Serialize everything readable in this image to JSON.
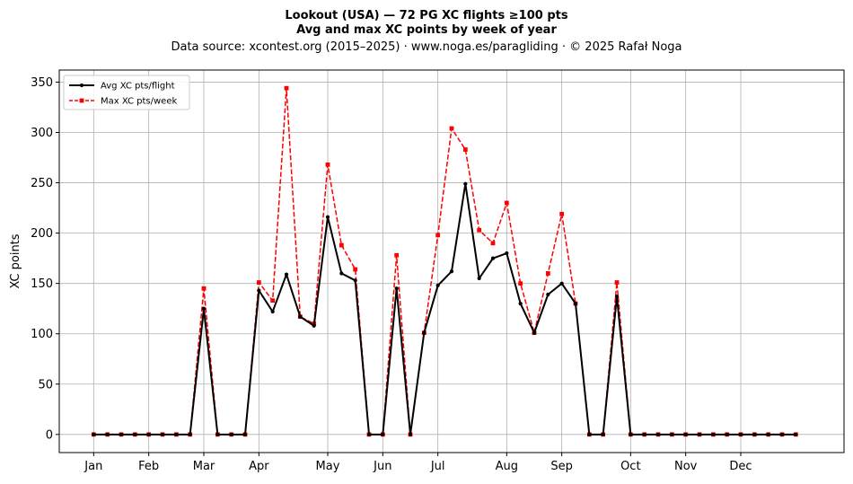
{
  "chart_data": {
    "type": "line",
    "title_lines": [
      "Lookout (USA)  —  72 PG XC flights ≥100 pts",
      "Avg and max XC points by week of year"
    ],
    "subtitle": "Data source: xcontest.org (2015–2025)  ·  www.noga.es/paragliding  ·  © 2025 Rafał Noga",
    "ylabel": "XC points",
    "xlabel": "",
    "x_unit": "week of year",
    "xlim": [
      -2.5,
      54.5
    ],
    "ylim": [
      -18,
      362
    ],
    "grid": true,
    "legend_position": "top-left",
    "x_ticks": [
      {
        "label": "Jan",
        "x": 0
      },
      {
        "label": "Feb",
        "x": 4
      },
      {
        "label": "Mar",
        "x": 8
      },
      {
        "label": "Apr",
        "x": 12
      },
      {
        "label": "May",
        "x": 17
      },
      {
        "label": "Jun",
        "x": 21
      },
      {
        "label": "Jul",
        "x": 25
      },
      {
        "label": "Aug",
        "x": 30
      },
      {
        "label": "Sep",
        "x": 34
      },
      {
        "label": "Oct",
        "x": 39
      },
      {
        "label": "Nov",
        "x": 43
      },
      {
        "label": "Dec",
        "x": 47
      }
    ],
    "y_ticks": [
      0,
      50,
      100,
      150,
      200,
      250,
      300,
      350
    ],
    "x": [
      0,
      1,
      2,
      3,
      4,
      5,
      6,
      7,
      8,
      9,
      10,
      11,
      12,
      13,
      14,
      15,
      16,
      17,
      18,
      19,
      20,
      21,
      22,
      23,
      24,
      25,
      26,
      27,
      28,
      29,
      30,
      31,
      32,
      33,
      34,
      35,
      36,
      37,
      38,
      39,
      40,
      41,
      42,
      43,
      44,
      45,
      46,
      47,
      48,
      49,
      50,
      51
    ],
    "series": [
      {
        "name": "Avg XC pts/flight",
        "color": "#000000",
        "style": "solid",
        "marker": "circle",
        "values": [
          0,
          0,
          0,
          0,
          0,
          0,
          0,
          0,
          125,
          0,
          0,
          0,
          143,
          122,
          159,
          117,
          108,
          216,
          160,
          153,
          0,
          0,
          145,
          0,
          101,
          148,
          162,
          249,
          155,
          175,
          180,
          130,
          101,
          139,
          150,
          130,
          0,
          0,
          137,
          0,
          0,
          0,
          0,
          0,
          0,
          0,
          0,
          0,
          0,
          0,
          0,
          0
        ]
      },
      {
        "name": "Max XC pts/week",
        "color": "#ff0000",
        "style": "dashed",
        "marker": "square",
        "values": [
          0,
          0,
          0,
          0,
          0,
          0,
          0,
          0,
          145,
          0,
          0,
          0,
          151,
          133,
          344,
          117,
          110,
          268,
          188,
          164,
          0,
          0,
          178,
          0,
          101,
          198,
          304,
          283,
          203,
          190,
          230,
          150,
          101,
          160,
          219,
          130,
          0,
          0,
          151,
          0,
          0,
          0,
          0,
          0,
          0,
          0,
          0,
          0,
          0,
          0,
          0,
          0
        ]
      }
    ]
  }
}
